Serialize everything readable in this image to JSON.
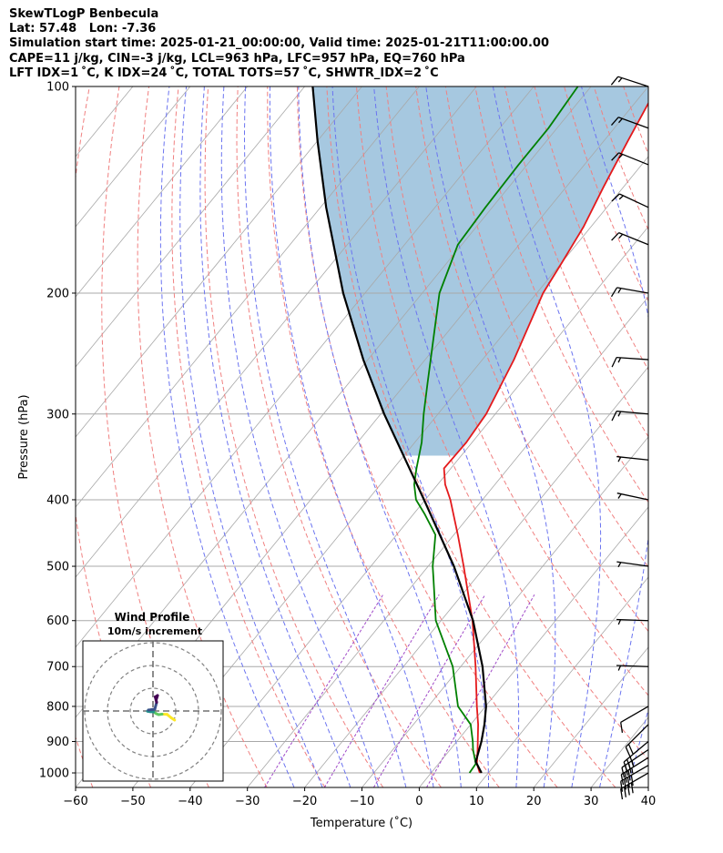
{
  "header": {
    "line1": "SkewTLogP Benbecula",
    "line2": "Lat: 57.48   Lon: -7.36",
    "line3": "Simulation start time: 2025-01-21_00:00:00, Valid time: 2025-01-21T11:00:00.00",
    "line4": "CAPE=11 j/kg, CIN=-3 j/kg, LCL=963 hPa, LFC=957 hPa, EQ=760 hPa",
    "line5": "LFT IDX=1 ˚C, K IDX=24 ˚C, TOTAL TOTS=57 ˚C, SHWTR_IDX=2 ˚C"
  },
  "chart_data": [
    {
      "type": "line",
      "subtype": "skew-t log-p",
      "xlabel": "Temperature (˚C)",
      "ylabel": "Pressure (hPa)",
      "xlim": [
        -60,
        40
      ],
      "ylim": [
        1050,
        100
      ],
      "y_scale": "log",
      "grid": true,
      "x_ticks": [
        -60,
        -50,
        -40,
        -30,
        -20,
        -10,
        0,
        10,
        20,
        30,
        40
      ],
      "x_tick_labels": [
        "−60",
        "−50",
        "−40",
        "−30",
        "−20",
        "−10",
        "0",
        "10",
        "20",
        "30",
        "40"
      ],
      "y_ticks": [
        1000,
        900,
        800,
        700,
        600,
        500,
        400,
        300,
        200,
        100
      ],
      "y_tick_labels": [
        "1000",
        "900",
        "800",
        "700",
        "600",
        "500",
        "400",
        "300",
        "200",
        "100"
      ],
      "colors": {
        "temperature": "#e41a1c",
        "dewpoint": "#008000",
        "parcel": "#000000",
        "cape_fill": "#a6c8e0",
        "dry_adiabats": "#f08080",
        "moist_adiabats": "#6b74f0",
        "mixing_ratio": "#a04ac8",
        "isotherms": "#a8a8a8"
      },
      "series": [
        {
          "role": "temperature",
          "points": [
            [
              1000,
              8.5
            ],
            [
              970,
              6.7
            ],
            [
              925,
              4.8
            ],
            [
              850,
              1.3
            ],
            [
              800,
              -1.5
            ],
            [
              700,
              -7.4
            ],
            [
              600,
              -14.5
            ],
            [
              500,
              -23.8
            ],
            [
              450,
              -29.3
            ],
            [
              400,
              -35.6
            ],
            [
              380,
              -38.7
            ],
            [
              360,
              -41.2
            ],
            [
              330,
              -41.0
            ],
            [
              300,
              -41.6
            ],
            [
              250,
              -44.5
            ],
            [
              200,
              -48.9
            ],
            [
              180,
              -50.0
            ],
            [
              160,
              -51.3
            ],
            [
              140,
              -53.5
            ],
            [
              120,
              -55.8
            ],
            [
              100,
              -58.4
            ]
          ]
        },
        {
          "role": "dewpoint",
          "points": [
            [
              1000,
              6.7
            ],
            [
              970,
              6.5
            ],
            [
              925,
              4.0
            ],
            [
              900,
              2.8
            ],
            [
              850,
              0.0
            ],
            [
              800,
              -4.8
            ],
            [
              700,
              -11.4
            ],
            [
              600,
              -20.9
            ],
            [
              520,
              -27.4
            ],
            [
              500,
              -29.2
            ],
            [
              450,
              -33.2
            ],
            [
              420,
              -38.0
            ],
            [
              400,
              -41.6
            ],
            [
              380,
              -44.1
            ],
            [
              360,
              -46.0
            ],
            [
              330,
              -48.8
            ],
            [
              300,
              -52.5
            ],
            [
              270,
              -56.3
            ],
            [
              240,
              -60.5
            ],
            [
              200,
              -67.0
            ],
            [
              170,
              -70.7
            ],
            [
              150,
              -71.2
            ],
            [
              130,
              -71.5
            ],
            [
              115,
              -71.5
            ],
            [
              100,
              -72.3
            ]
          ]
        },
        {
          "role": "parcel",
          "points": [
            [
              1000,
              8.8
            ],
            [
              963,
              6.2
            ],
            [
              900,
              4.3
            ],
            [
              850,
              2.4
            ],
            [
              800,
              0.1
            ],
            [
              700,
              -6.2
            ],
            [
              600,
              -14.4
            ],
            [
              500,
              -25.5
            ],
            [
              400,
              -40.2
            ],
            [
              300,
              -59.4
            ],
            [
              250,
              -70.8
            ],
            [
              200,
              -83.8
            ],
            [
              150,
              -99.0
            ],
            [
              120,
              -110.0
            ],
            [
              100,
              -118.6
            ]
          ]
        }
      ]
    },
    {
      "type": "line",
      "subtype": "hodograph",
      "title": "Wind Profile",
      "subtitle": "10m/s increment",
      "ring_spacing_ms": 10,
      "rings": 3,
      "grid": false,
      "trace": [
        [
          9.5,
          -4.0
        ],
        [
          8.0,
          -3.0
        ],
        [
          6.2,
          -1.5
        ],
        [
          4.0,
          -1.4
        ],
        [
          2.5,
          -1.6
        ],
        [
          1.5,
          -1.2
        ],
        [
          0.2,
          -0.4
        ],
        [
          -1.2,
          -0.3
        ],
        [
          -2.4,
          -0.1
        ],
        [
          -2.0,
          0.4
        ],
        [
          -0.5,
          0.6
        ],
        [
          0.8,
          0.8
        ],
        [
          1.6,
          3.8
        ],
        [
          1.0,
          6.2
        ],
        [
          2.0,
          6.8
        ],
        [
          1.5,
          5.2
        ]
      ]
    }
  ],
  "wind_barbs": [
    {
      "p": 1000,
      "dir": 240,
      "kt": 38
    },
    {
      "p": 975,
      "dir": 240,
      "kt": 38
    },
    {
      "p": 950,
      "dir": 238,
      "kt": 36
    },
    {
      "p": 925,
      "dir": 236,
      "kt": 33
    },
    {
      "p": 900,
      "dir": 230,
      "kt": 30
    },
    {
      "p": 850,
      "dir": 225,
      "kt": 22
    },
    {
      "p": 800,
      "dir": 240,
      "kt": 10
    },
    {
      "p": 700,
      "dir": 272,
      "kt": 5
    },
    {
      "p": 600,
      "dir": 272,
      "kt": 5
    },
    {
      "p": 500,
      "dir": 278,
      "kt": 5
    },
    {
      "p": 400,
      "dir": 282,
      "kt": 5
    },
    {
      "p": 350,
      "dir": 276,
      "kt": 5
    },
    {
      "p": 300,
      "dir": 275,
      "kt": 15
    },
    {
      "p": 250,
      "dir": 274,
      "kt": 15
    },
    {
      "p": 200,
      "dir": 280,
      "kt": 15
    },
    {
      "p": 170,
      "dir": 292,
      "kt": 15
    },
    {
      "p": 150,
      "dir": 295,
      "kt": 15
    },
    {
      "p": 130,
      "dir": 292,
      "kt": 15
    },
    {
      "p": 115,
      "dir": 290,
      "kt": 15
    },
    {
      "p": 100,
      "dir": 288,
      "kt": 15
    }
  ]
}
